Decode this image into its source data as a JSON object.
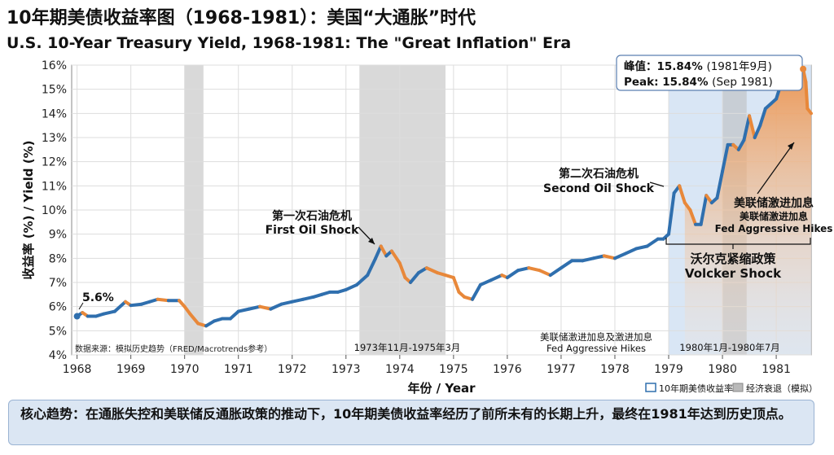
{
  "title_zh": "10年期美债收益率图（1968-1981）：美国“大通胀”时代",
  "title_en": "U.S. 10-Year Treasury Yield, 1968-1981: The \"Great Inflation\" Era",
  "summary": "核心趋势：在通胀失控和美联储反通胀政策的推动下，10年期美债收益率经历了前所未有的长期上升，最终在1981年达到历史顶点。",
  "chart_data": {
    "type": "line",
    "xlabel": "年份 / Year",
    "ylabel": "收益率 (%) / Yield (%)",
    "x_ticks": [
      "1968",
      "1969",
      "1970",
      "1971",
      "1972",
      "1973",
      "1974",
      "1975",
      "1976",
      "1977",
      "1978",
      "1979",
      "1980",
      "1981"
    ],
    "y_ticks": [
      "4%",
      "5%",
      "6%",
      "7%",
      "8%",
      "9%",
      "10%",
      "11%",
      "12%",
      "13%",
      "14%",
      "15%",
      "16%"
    ],
    "xlim": [
      1967.9,
      1981.65
    ],
    "ylim": [
      4,
      16
    ],
    "grid": true,
    "legend_placement": "bottom-right",
    "series": [
      {
        "name": "10年期美债收益率",
        "color_rise": "#2f6fae",
        "color_fall": "#e8883a",
        "x": [
          1968.0,
          1968.1,
          1968.2,
          1968.35,
          1968.5,
          1968.7,
          1968.9,
          1969.0,
          1969.2,
          1969.35,
          1969.5,
          1969.7,
          1969.9,
          1970.0,
          1970.1,
          1970.25,
          1970.4,
          1970.55,
          1970.7,
          1970.85,
          1971.0,
          1971.2,
          1971.4,
          1971.6,
          1971.8,
          1972.0,
          1972.2,
          1972.4,
          1972.55,
          1972.7,
          1972.85,
          1973.0,
          1973.2,
          1973.4,
          1973.55,
          1973.65,
          1973.75,
          1973.85,
          1974.0,
          1974.1,
          1974.2,
          1974.35,
          1974.5,
          1974.7,
          1974.85,
          1975.0,
          1975.1,
          1975.2,
          1975.35,
          1975.5,
          1975.7,
          1975.9,
          1976.0,
          1976.2,
          1976.4,
          1976.6,
          1976.8,
          1977.0,
          1977.2,
          1977.4,
          1977.6,
          1977.8,
          1978.0,
          1978.2,
          1978.4,
          1978.6,
          1978.8,
          1978.9,
          1979.0,
          1979.1,
          1979.2,
          1979.3,
          1979.4,
          1979.5,
          1979.6,
          1979.7,
          1979.8,
          1979.9,
          1980.0,
          1980.1,
          1980.2,
          1980.3,
          1980.4,
          1980.5,
          1980.6,
          1980.7,
          1980.8,
          1980.9,
          1981.0,
          1981.1,
          1981.2,
          1981.3,
          1981.4,
          1981.5,
          1981.55,
          1981.58,
          1981.65
        ],
        "values": [
          5.6,
          5.75,
          5.6,
          5.6,
          5.7,
          5.8,
          6.2,
          6.05,
          6.1,
          6.2,
          6.3,
          6.25,
          6.25,
          6.0,
          5.7,
          5.3,
          5.2,
          5.4,
          5.5,
          5.5,
          5.8,
          5.9,
          6.0,
          5.9,
          6.1,
          6.2,
          6.3,
          6.4,
          6.5,
          6.6,
          6.6,
          6.7,
          6.9,
          7.3,
          8.0,
          8.5,
          8.1,
          8.3,
          7.8,
          7.2,
          7.0,
          7.4,
          7.6,
          7.4,
          7.3,
          7.2,
          6.6,
          6.4,
          6.3,
          6.9,
          7.1,
          7.3,
          7.2,
          7.5,
          7.6,
          7.5,
          7.3,
          7.6,
          7.9,
          7.9,
          8.0,
          8.1,
          8.0,
          8.2,
          8.4,
          8.5,
          8.8,
          8.8,
          9.0,
          10.7,
          11.0,
          10.3,
          10.0,
          9.4,
          9.4,
          10.6,
          10.3,
          10.5,
          11.6,
          12.7,
          12.7,
          12.5,
          12.9,
          13.9,
          13.0,
          13.5,
          14.2,
          14.4,
          14.6,
          15.3,
          15.4,
          15.1,
          15.6,
          15.84,
          15.3,
          14.2,
          14.0
        ]
      }
    ],
    "recession_bands": [
      {
        "start": 1970.0,
        "end": 1970.35
      },
      {
        "start": 1973.25,
        "end": 1974.85,
        "label": "1973年11月-1975年3月"
      },
      {
        "start": 1980.0,
        "end": 1980.45,
        "label": "1980年1月-1980年7月"
      }
    ],
    "volcker_band": {
      "start": 1979.0,
      "end": 1981.65
    },
    "annotations": {
      "start_value": "5.6%",
      "peak_zh_prefix": "峰值：",
      "peak_zh_value": "15.84%",
      "peak_zh_date": "(1981年9月)",
      "peak_en_prefix": "Peak:",
      "peak_en_value": "15.84%",
      "peak_en_date": "(Sep 1981)",
      "oil1_zh": "第一次石油危机",
      "oil1_en": "First Oil Shock",
      "oil2_zh": "第二次石油危机",
      "oil2_en": "Second Oil Shock",
      "fed1_zh": "美联储激进加息",
      "fed2_zh": "美联储激进加息",
      "fed_en": "Fed Aggressive Hikes",
      "volcker_zh": "沃尔克紧缩政策",
      "volcker_en": "Volcker Shock",
      "bottom_fed_zh": "美联储激进加息及激进加息",
      "bottom_fed_en": "Fed Aggressive Hikes",
      "source": "数据来源：模拟历史趋势（FRED/Macrotrends参考）"
    },
    "legend": {
      "line_label": "10年期美债收益率",
      "recession_label": "经济衰退（模拟）"
    }
  }
}
